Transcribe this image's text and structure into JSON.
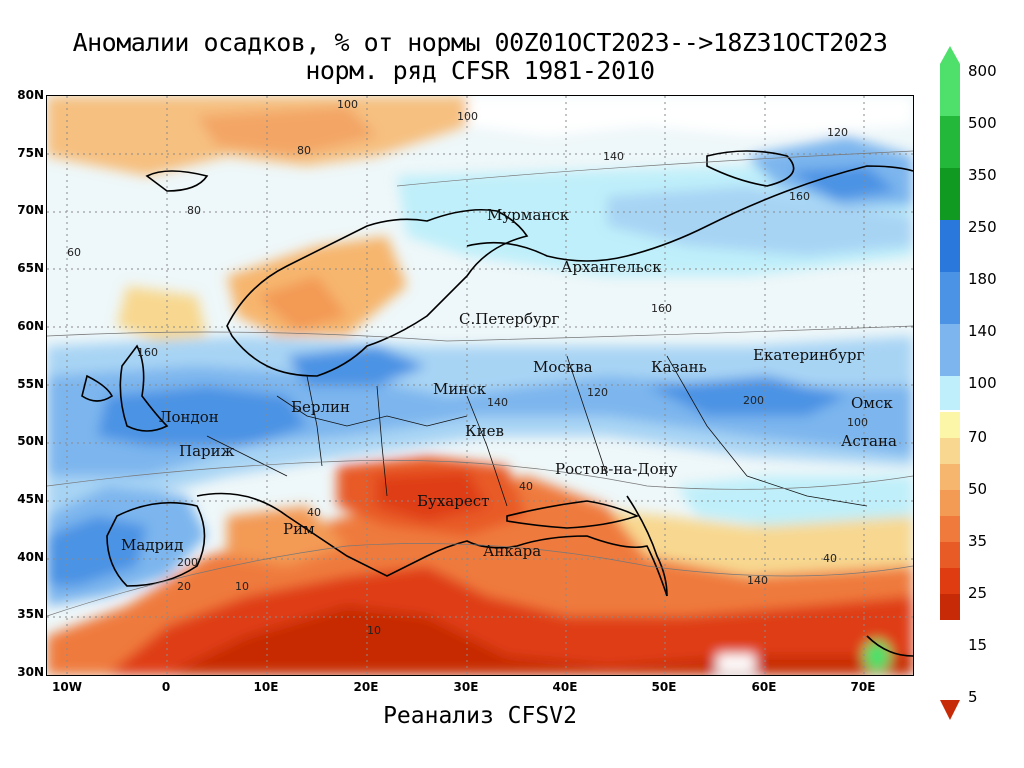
{
  "title": {
    "line1": "Аномалии осадков, % от нормы 00Z01OCT2023-->18Z31OCT2023",
    "line2": "норм. ряд CFSR 1981-2010"
  },
  "footer": "Реанализ CFSV2",
  "axes": {
    "lat_ticks": [
      "80N",
      "75N",
      "70N",
      "65N",
      "60N",
      "55N",
      "50N",
      "45N",
      "40N",
      "35N",
      "30N"
    ],
    "lon_ticks": [
      "10W",
      "0",
      "10E",
      "20E",
      "30E",
      "40E",
      "50E",
      "60E",
      "70E"
    ]
  },
  "colorbar": {
    "upper": [
      {
        "value": "800",
        "color": "#4ee06a"
      },
      {
        "value": "500",
        "color": "#23b83a"
      },
      {
        "value": "350",
        "color": "#109a22"
      },
      {
        "value": "250",
        "color": "#2a78dc"
      },
      {
        "value": "180",
        "color": "#4b93e4"
      },
      {
        "value": "140",
        "color": "#7db6ee"
      },
      {
        "value": "",
        "color": "#a8d4f4"
      },
      {
        "value": "",
        "color": "#bfeffa"
      }
    ],
    "middle": "100",
    "lower": [
      {
        "value": "70",
        "color": "#fbf6a8"
      },
      {
        "value": "50",
        "color": "#f8d890"
      },
      {
        "value": "",
        "color": "#f6b66e"
      },
      {
        "value": "35",
        "color": "#f39a55"
      },
      {
        "value": "25",
        "color": "#ef7a3c"
      },
      {
        "value": "",
        "color": "#e85a26"
      },
      {
        "value": "15",
        "color": "#df3c12"
      },
      {
        "value": "5",
        "color": "#c72a06"
      }
    ]
  },
  "cities": [
    {
      "name": "Мурманск"
    },
    {
      "name": "Архангельск"
    },
    {
      "name": "С.Петербург"
    },
    {
      "name": "Москва"
    },
    {
      "name": "Казань"
    },
    {
      "name": "Екатеринбург"
    },
    {
      "name": "Минск"
    },
    {
      "name": "Берлин"
    },
    {
      "name": "Лондон"
    },
    {
      "name": "Париж"
    },
    {
      "name": "Киев"
    },
    {
      "name": "Омск"
    },
    {
      "name": "Астана"
    },
    {
      "name": "Ростов-на-Дону"
    },
    {
      "name": "Бухарест"
    },
    {
      "name": "Рим"
    },
    {
      "name": "Мадрид"
    },
    {
      "name": "Анкара"
    }
  ],
  "contour_labels": [
    "100",
    "80",
    "120",
    "140",
    "160",
    "200",
    "60",
    "40",
    "20",
    "10"
  ]
}
